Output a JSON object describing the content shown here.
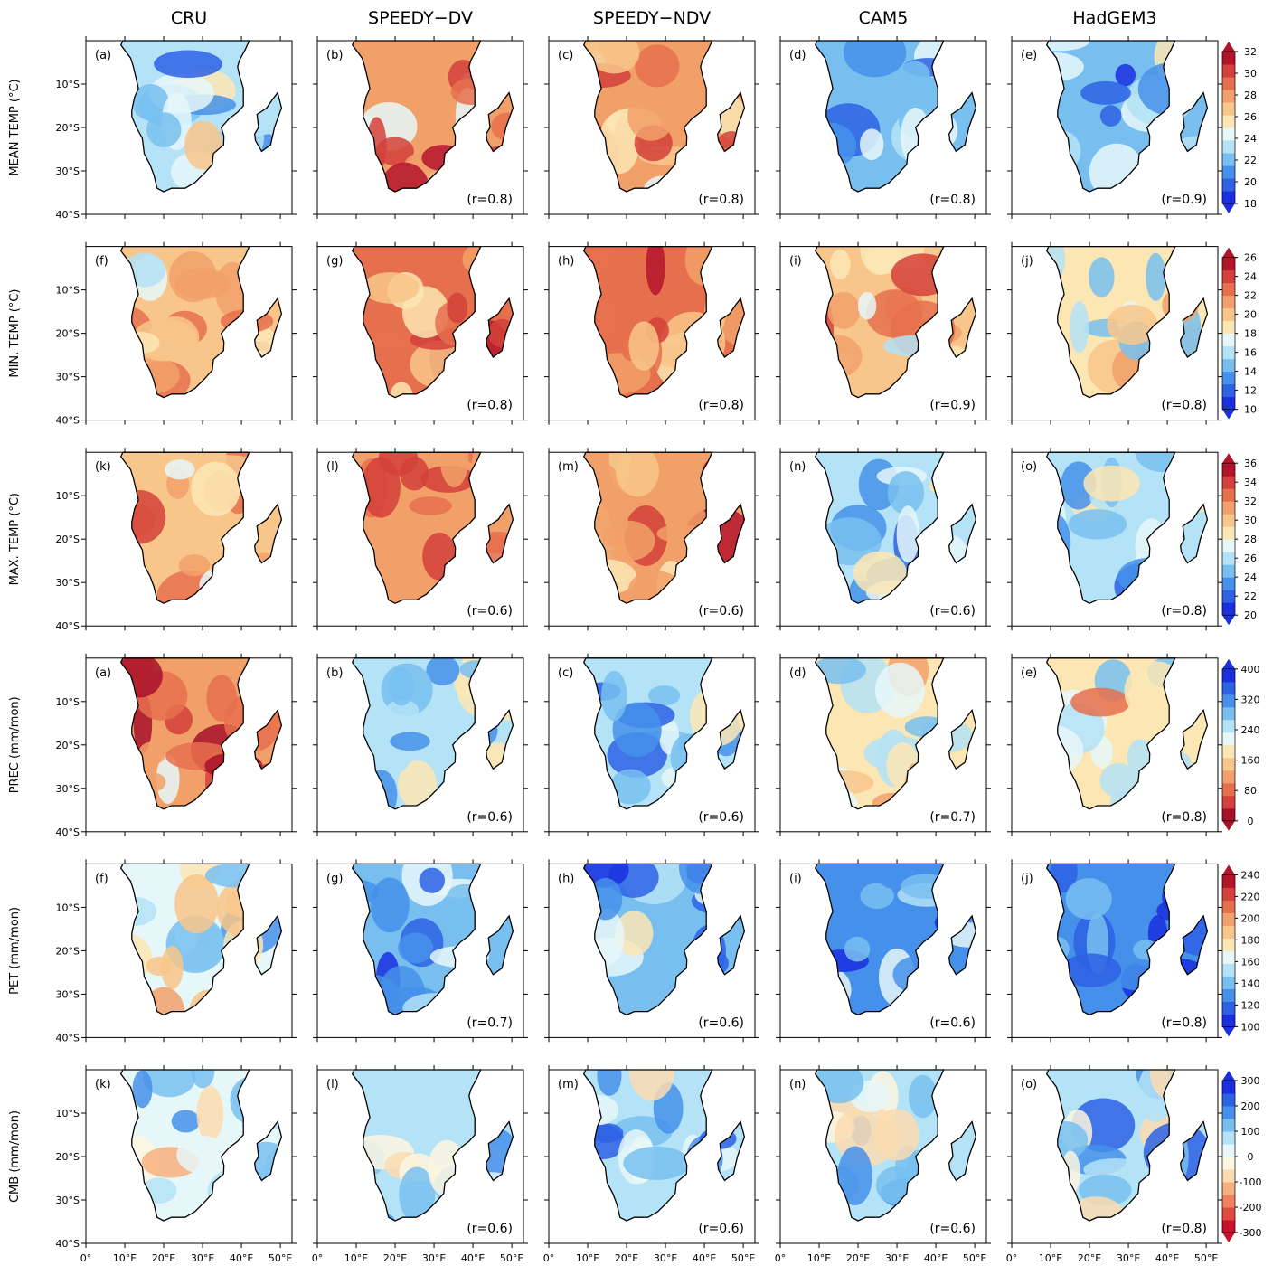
{
  "columns": [
    "CRU",
    "SPEEDY−DV",
    "SPEEDY−NDV",
    "CAM5",
    "HadGEM3"
  ],
  "lat_ticks": [
    {
      "value": -10,
      "label": "10°S"
    },
    {
      "value": -20,
      "label": "20°S"
    },
    {
      "value": -30,
      "label": "30°S"
    },
    {
      "value": -40,
      "label": "40°S"
    }
  ],
  "lon_ticks": [
    {
      "value": 0,
      "label": "0°"
    },
    {
      "value": 10,
      "label": "10°E"
    },
    {
      "value": 20,
      "label": "20°E"
    },
    {
      "value": 30,
      "label": "30°E"
    },
    {
      "value": 40,
      "label": "40°E"
    },
    {
      "value": 50,
      "label": "50°E"
    }
  ],
  "rows": [
    {
      "label": "MEAN TEMP (°C)",
      "panels": [
        "(a)",
        "(b)",
        "(c)",
        "(d)",
        "(e)"
      ],
      "r": [
        "(r=0.8)",
        "(r=0.8)",
        "(r=0.8)",
        "(r=0.9)"
      ],
      "colorbar": {
        "ticks": [
          18,
          20,
          22,
          24,
          26,
          28,
          30,
          32
        ],
        "colors": [
          "#1a2fe0",
          "#2d62e4",
          "#4590ea",
          "#78bff0",
          "#b4e2f6",
          "#e6f7f9",
          "#fbe6b4",
          "#f8c68a",
          "#f2a06a",
          "#e6704e",
          "#d4413a",
          "#b4142a"
        ]
      }
    },
    {
      "label": "MIN. TEMP (°C)",
      "panels": [
        "(f)",
        "(g)",
        "(h)",
        "(i)",
        "(j)"
      ],
      "r": [
        "(r=0.8)",
        "(r=0.8)",
        "(r=0.9)",
        "(r=0.8)"
      ],
      "colorbar": {
        "ticks": [
          10,
          12,
          14,
          16,
          18,
          20,
          22,
          24,
          26
        ],
        "colors": [
          "#1a2fe0",
          "#2d62e4",
          "#4590ea",
          "#78bff0",
          "#b4e2f6",
          "#e6f7f9",
          "#fbe6b4",
          "#f8c68a",
          "#f2a06a",
          "#e6704e",
          "#d4413a",
          "#b4142a"
        ]
      }
    },
    {
      "label": "MAX. TEMP (°C)",
      "panels": [
        "(k)",
        "(l)",
        "(m)",
        "(n)",
        "(o)"
      ],
      "r": [
        "(r=0.6)",
        "(r=0.6)",
        "(r=0.6)",
        "(r=0.8)"
      ],
      "colorbar": {
        "ticks": [
          20,
          22,
          24,
          26,
          28,
          30,
          32,
          34,
          36
        ],
        "colors": [
          "#1a2fe0",
          "#2d62e4",
          "#4590ea",
          "#78bff0",
          "#b4e2f6",
          "#e6f7f9",
          "#fbe6b4",
          "#f8c68a",
          "#f2a06a",
          "#e6704e",
          "#d4413a",
          "#b4142a"
        ]
      }
    },
    {
      "label": "PREC (mm/mon)",
      "panels": [
        "(a)",
        "(b)",
        "(c)",
        "(d)",
        "(e)"
      ],
      "r": [
        "(r=0.6)",
        "(r=0.6)",
        "(r=0.7)",
        "(r=0.8)"
      ],
      "colorbar": {
        "ticks": [
          0,
          80,
          160,
          240,
          320,
          400
        ],
        "colors": [
          "#a8102a",
          "#d4413a",
          "#e6704e",
          "#f2a06a",
          "#f8c68a",
          "#fbe6b4",
          "#e6f7f9",
          "#b4e2f6",
          "#78bff0",
          "#4590ea",
          "#2d62e4",
          "#1a2fe0"
        ]
      }
    },
    {
      "label": "PET (mm/mon)",
      "panels": [
        "(f)",
        "(g)",
        "(h)",
        "(i)",
        "(j)"
      ],
      "r": [
        "(r=0.7)",
        "(r=0.6)",
        "(r=0.6)",
        "(r=0.8)"
      ],
      "colorbar": {
        "ticks": [
          100,
          120,
          140,
          160,
          180,
          200,
          220,
          240
        ],
        "colors": [
          "#1a2fe0",
          "#2d62e4",
          "#4590ea",
          "#78bff0",
          "#b4e2f6",
          "#e6f7f9",
          "#fbe6b4",
          "#f8c68a",
          "#f2a06a",
          "#e6704e",
          "#d4413a",
          "#b4142a"
        ]
      }
    },
    {
      "label": "CMB (mm/mon)",
      "panels": [
        "(k)",
        "(l)",
        "(m)",
        "(n)",
        "(o)"
      ],
      "r": [
        "(r=0.6)",
        "(r=0.6)",
        "(r=0.6)",
        "(r=0.8)"
      ],
      "colorbar": {
        "ticks": [
          -300,
          -200,
          -100,
          0,
          100,
          200,
          300
        ],
        "colors": [
          "#c8102a",
          "#e04a40",
          "#f08060",
          "#f6b07e",
          "#fbdcb0",
          "#fdf6e0",
          "#e6f7f9",
          "#b4e2f6",
          "#78bff0",
          "#4590ea",
          "#2d62e4",
          "#1a2fe0"
        ]
      }
    }
  ]
}
